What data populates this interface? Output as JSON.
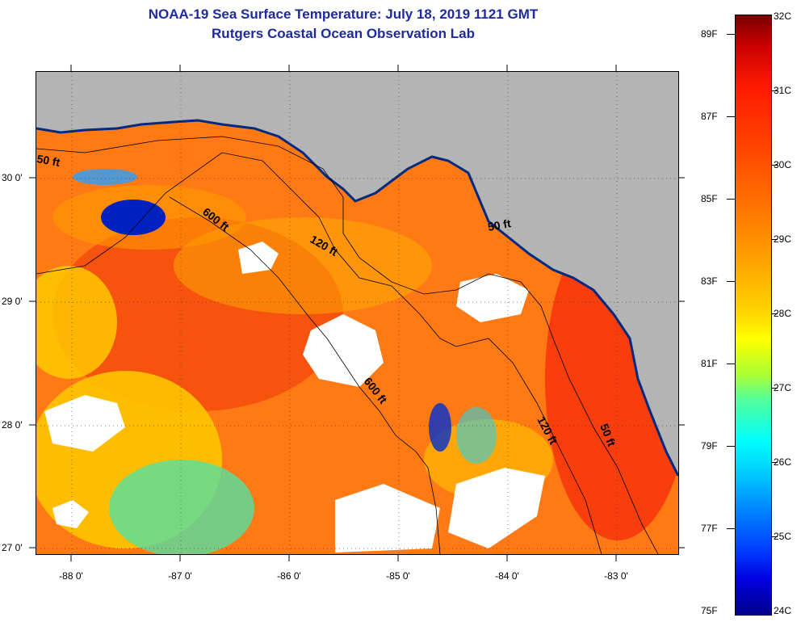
{
  "title": {
    "line1": "NOAA-19 Sea Surface Temperature:  July 18, 2019 1121 GMT",
    "line2": "Rutgers Coastal Ocean Observation Lab"
  },
  "map": {
    "longitude_labels": [
      "-88 0'",
      "-87 0'",
      "-86 0'",
      "-85 0'",
      "-84 0'",
      "-83 0'"
    ],
    "latitude_labels": [
      "30 0'",
      "29 0'",
      "28 0'",
      "27 0'"
    ],
    "contour_labels": [
      "50 ft",
      "600 ft",
      "120 ft",
      "50 ft",
      "600 ft",
      "120 ft",
      "50 ft"
    ],
    "colors": {
      "land": "#b4b4b4",
      "cloud": "#ffffff",
      "sea_warm": "#ff7a14",
      "sea_hot": "#f5300a",
      "sea_mild": "#ffc400",
      "sea_cool": "#55e0a0",
      "sea_cold": "#0020c0"
    }
  },
  "colorbar": {
    "fahrenheit_labels": [
      "89F",
      "87F",
      "85F",
      "83F",
      "81F",
      "79F",
      "77F",
      "75F"
    ],
    "celsius_labels": [
      "32C",
      "31C",
      "30C",
      "29C",
      "28C",
      "27C",
      "26C",
      "25C",
      "24C"
    ]
  }
}
